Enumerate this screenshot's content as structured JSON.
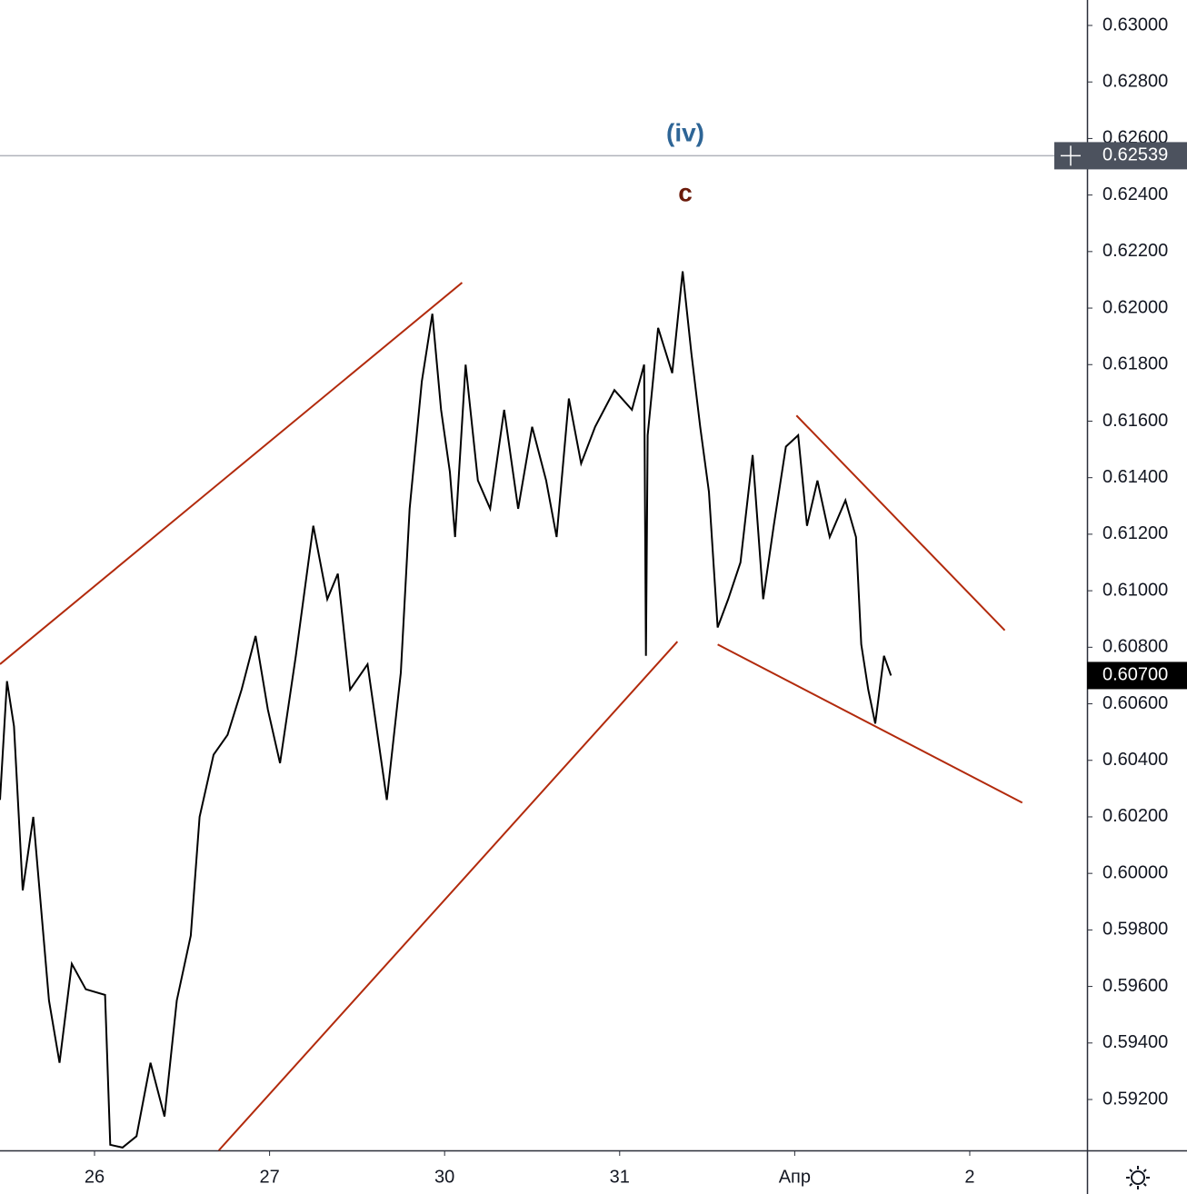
{
  "chart_data": {
    "type": "line",
    "x": [
      -0.54,
      -0.5,
      -0.46,
      -0.41,
      -0.35,
      -0.26,
      -0.2,
      -0.13,
      -0.05,
      0.06,
      0.09,
      0.16,
      0.24,
      0.32,
      0.4,
      0.47,
      0.55,
      0.6,
      0.68,
      0.76,
      0.84,
      0.92,
      0.99,
      1.06,
      1.15,
      1.25,
      1.33,
      1.39,
      1.46,
      1.56,
      1.67,
      1.75,
      1.8,
      1.87,
      1.93,
      1.98,
      2.03,
      2.06,
      2.12,
      2.19,
      2.26,
      2.34,
      2.42,
      2.5,
      2.58,
      2.64,
      2.71,
      2.78,
      2.86,
      2.97,
      3.07,
      3.14,
      3.15,
      3.16,
      3.22,
      3.3,
      3.36,
      3.41,
      3.46,
      3.51,
      3.56,
      3.62,
      3.69,
      3.76,
      3.82,
      3.88,
      3.95,
      4.02,
      4.07,
      4.13,
      4.2,
      4.29,
      4.35,
      4.38,
      4.42,
      4.46,
      4.51,
      4.55
    ],
    "series": [
      {
        "color": "#000000",
        "values": [
          0.6026,
          0.6068,
          0.6052,
          0.5994,
          0.602,
          0.5955,
          0.5933,
          0.5968,
          0.5959,
          0.5957,
          0.5904,
          0.5903,
          0.5907,
          0.5933,
          0.5914,
          0.5955,
          0.5978,
          0.602,
          0.6042,
          0.6049,
          0.6065,
          0.6084,
          0.6058,
          0.6039,
          0.6077,
          0.6123,
          0.6097,
          0.6106,
          0.6065,
          0.6074,
          0.6026,
          0.6071,
          0.6129,
          0.6174,
          0.6198,
          0.6164,
          0.6142,
          0.6119,
          0.618,
          0.6139,
          0.6129,
          0.6164,
          0.6129,
          0.6158,
          0.6139,
          0.6119,
          0.6168,
          0.6145,
          0.6158,
          0.6171,
          0.6164,
          0.618,
          0.6077,
          0.6155,
          0.6193,
          0.6177,
          0.6213,
          0.6184,
          0.6158,
          0.6135,
          0.6087,
          0.6097,
          0.611,
          0.6148,
          0.6097,
          0.6123,
          0.6151,
          0.6155,
          0.6123,
          0.6139,
          0.6119,
          0.6132,
          0.6119,
          0.6081,
          0.6065,
          0.6053,
          0.6077,
          0.607
        ]
      }
    ],
    "trendlines": [
      {
        "color": "#b22a0c",
        "x": [
          -0.54,
          2.1
        ],
        "y": [
          0.6074,
          0.6209
        ]
      },
      {
        "color": "#b22a0c",
        "x": [
          0.71,
          3.33
        ],
        "y": [
          0.5902,
          0.6082
        ]
      },
      {
        "color": "#b22a0c",
        "x": [
          3.56,
          5.3
        ],
        "y": [
          0.6081,
          0.6025
        ]
      },
      {
        "color": "#b22a0c",
        "x": [
          4.01,
          5.2
        ],
        "y": [
          0.6162,
          0.6086
        ]
      }
    ],
    "annotations": [
      {
        "text": "(iv)",
        "color": "#2e6596"
      },
      {
        "text": "c",
        "color": "#6b1a0a"
      }
    ],
    "last_price": {
      "value": 0.607,
      "label": "0.60700"
    },
    "crosshair_price": 0.62539,
    "xlim": [
      -0.54,
      5.67
    ],
    "ylim": [
      0.5902,
      0.6309
    ],
    "xticks": [
      {
        "value": 0,
        "label": "26"
      },
      {
        "value": 1,
        "label": "27"
      },
      {
        "value": 2,
        "label": "30"
      },
      {
        "value": 3,
        "label": "31"
      },
      {
        "value": 4,
        "label": "Апр"
      },
      {
        "value": 5,
        "label": "2"
      }
    ],
    "yticks": [
      {
        "value": 0.592,
        "label": "0.59200"
      },
      {
        "value": 0.594,
        "label": "0.59400"
      },
      {
        "value": 0.596,
        "label": "0.59600"
      },
      {
        "value": 0.598,
        "label": "0.59800"
      },
      {
        "value": 0.6,
        "label": "0.60000"
      },
      {
        "value": 0.602,
        "label": "0.60200"
      },
      {
        "value": 0.604,
        "label": "0.60400"
      },
      {
        "value": 0.606,
        "label": "0.60600"
      },
      {
        "value": 0.608,
        "label": "0.60800"
      },
      {
        "value": 0.61,
        "label": "0.61000"
      },
      {
        "value": 0.612,
        "label": "0.61200"
      },
      {
        "value": 0.614,
        "label": "0.61400"
      },
      {
        "value": 0.616,
        "label": "0.61600"
      },
      {
        "value": 0.618,
        "label": "0.61800"
      },
      {
        "value": 0.62,
        "label": "0.62000"
      },
      {
        "value": 0.622,
        "label": "0.62200"
      },
      {
        "value": 0.624,
        "label": "0.62400"
      },
      {
        "value": 0.626,
        "label": "0.62600"
      },
      {
        "value": 0.628,
        "label": "0.62800"
      },
      {
        "value": 0.63,
        "label": "0.63000"
      }
    ],
    "grid": false
  }
}
